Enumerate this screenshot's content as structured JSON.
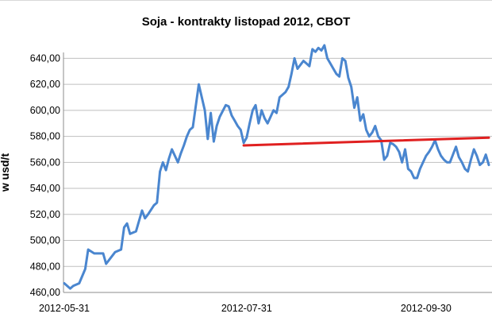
{
  "chart_data": {
    "type": "line",
    "title": "Soja - kontrakty listopad 2012, CBOT",
    "ylabel": "w usd/t",
    "ylim": [
      460,
      650
    ],
    "yticks": [
      "460,00",
      "480,00",
      "500,00",
      "520,00",
      "540,00",
      "560,00",
      "580,00",
      "600,00",
      "620,00",
      "640,00"
    ],
    "ytick_values": [
      460,
      480,
      500,
      520,
      540,
      560,
      580,
      600,
      620,
      640
    ],
    "xticks": [
      "2012-05-31",
      "2012-07-31",
      "2012-09-30"
    ],
    "xtick_values": [
      0,
      61,
      121
    ],
    "xlim": [
      0,
      142
    ],
    "grid": true,
    "series": [
      {
        "color": "#4a86cf",
        "x": [
          0,
          2,
          3,
          5,
          7,
          8,
          10,
          12,
          13,
          14,
          15,
          17,
          19,
          20,
          21,
          22,
          24,
          25,
          26,
          27,
          28,
          30,
          31,
          32,
          33,
          34,
          35,
          36,
          38,
          39,
          40,
          41,
          42,
          43,
          45,
          46,
          47,
          48,
          49,
          50,
          51,
          52,
          54,
          55,
          56,
          57,
          58,
          59,
          60,
          61,
          62,
          63,
          64,
          65,
          66,
          67,
          68,
          70,
          71,
          72,
          73,
          74,
          75,
          76,
          77,
          78,
          79,
          80,
          81,
          82,
          83,
          84,
          85,
          86,
          87,
          88,
          89,
          90,
          91,
          92,
          93,
          94,
          95,
          96,
          97,
          98,
          99,
          100,
          101,
          102,
          103,
          104,
          105,
          106,
          107,
          108,
          109,
          110,
          111,
          112,
          113,
          114,
          115,
          116,
          117,
          118,
          119,
          120,
          121,
          122,
          123,
          124,
          125,
          126,
          127,
          128,
          129,
          130,
          131,
          132,
          133,
          134,
          135,
          136,
          137,
          138,
          139,
          140,
          141,
          142
        ],
        "values": [
          467,
          463,
          465,
          467,
          478,
          493,
          490,
          490,
          490,
          482,
          485,
          491,
          493,
          510,
          513,
          505,
          507,
          515,
          523,
          517,
          520,
          527,
          529,
          553,
          560,
          554,
          563,
          570,
          560,
          567,
          573,
          580,
          585,
          587,
          620,
          610,
          600,
          578,
          598,
          576,
          588,
          595,
          604,
          603,
          596,
          592,
          588,
          585,
          575,
          579,
          590,
          600,
          604,
          590,
          600,
          594,
          590,
          600,
          598,
          610,
          612,
          614,
          618,
          628,
          640,
          632,
          635,
          638,
          636,
          634,
          647,
          645,
          648,
          646,
          650,
          640,
          636,
          632,
          628,
          626,
          640,
          638,
          625,
          618,
          602,
          610,
          592,
          597,
          585,
          580,
          583,
          588,
          580,
          577,
          562,
          565,
          575,
          574,
          572,
          568,
          560,
          570,
          555,
          553,
          548,
          548,
          555,
          560,
          565,
          568,
          572,
          577,
          570,
          565,
          562,
          560,
          560,
          566,
          572,
          564,
          560,
          555,
          553,
          562,
          570,
          565,
          558,
          560,
          566,
          558
        ]
      },
      {
        "color": "#e02020",
        "x": [
          60,
          142
        ],
        "values": [
          573,
          579
        ]
      }
    ]
  }
}
